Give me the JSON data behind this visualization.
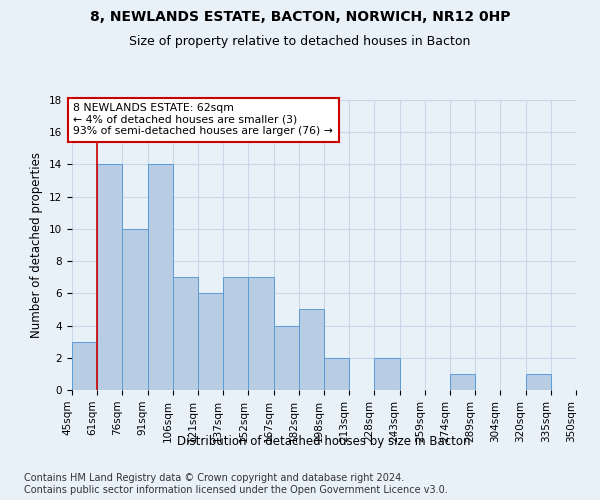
{
  "title_line1": "8, NEWLANDS ESTATE, BACTON, NORWICH, NR12 0HP",
  "title_line2": "Size of property relative to detached houses in Bacton",
  "xlabel": "Distribution of detached houses by size in Bacton",
  "ylabel": "Number of detached properties",
  "bar_values": [
    3,
    14,
    10,
    14,
    7,
    6,
    7,
    7,
    4,
    5,
    2,
    0,
    2,
    0,
    0,
    1,
    0,
    0,
    1,
    0
  ],
  "bin_labels": [
    "45sqm",
    "61sqm",
    "76sqm",
    "91sqm",
    "106sqm",
    "121sqm",
    "137sqm",
    "152sqm",
    "167sqm",
    "182sqm",
    "198sqm",
    "213sqm",
    "228sqm",
    "243sqm",
    "259sqm",
    "274sqm",
    "289sqm",
    "304sqm",
    "320sqm",
    "335sqm",
    "350sqm"
  ],
  "bar_color": "#b8cce4",
  "bar_edge_color": "#5b9bd5",
  "property_line_x": 1,
  "annotation_text": "8 NEWLANDS ESTATE: 62sqm\n← 4% of detached houses are smaller (3)\n93% of semi-detached houses are larger (76) →",
  "annotation_box_color": "#ffffff",
  "annotation_box_edge_color": "#cc0000",
  "property_line_color": "#cc0000",
  "grid_color": "#c8d8e8",
  "bg_color": "#e8f0f8",
  "ylim": [
    0,
    18
  ],
  "yticks": [
    0,
    2,
    4,
    6,
    8,
    10,
    12,
    14,
    16,
    18
  ],
  "footnote": "Contains HM Land Registry data © Crown copyright and database right 2024.\nContains public sector information licensed under the Open Government Licence v3.0.",
  "title_fontsize": 10,
  "subtitle_fontsize": 9,
  "label_fontsize": 8.5,
  "tick_fontsize": 7.5,
  "footnote_fontsize": 7
}
